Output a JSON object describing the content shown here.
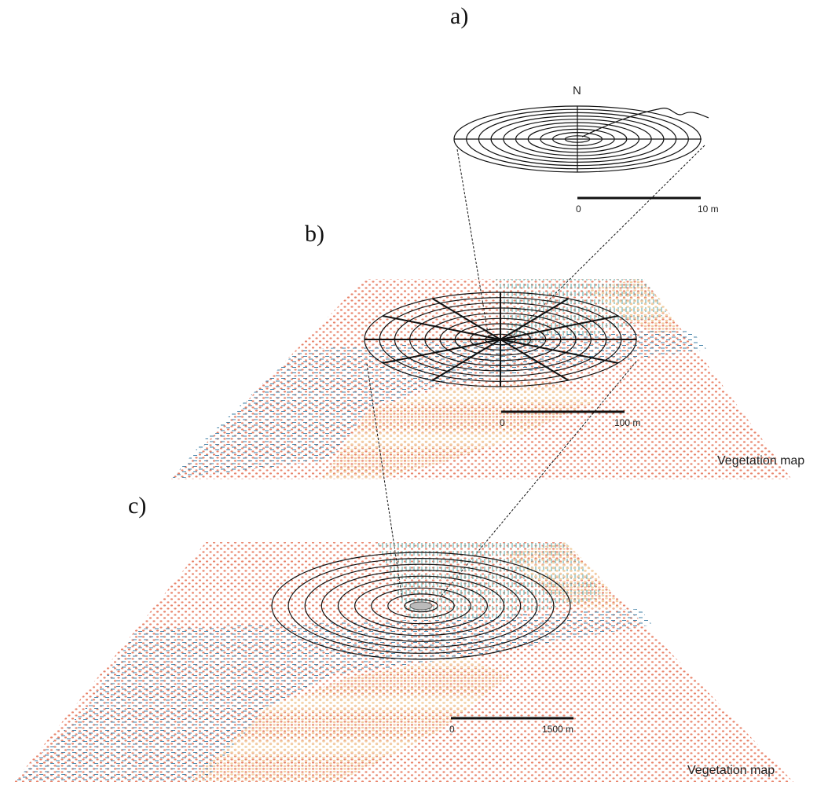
{
  "panels": {
    "a": {
      "label": "a)",
      "north_label": "N",
      "scale": {
        "start": "0",
        "end": "10 m"
      }
    },
    "b": {
      "label": "b)",
      "scale": {
        "start": "0",
        "end": "100 m"
      },
      "map_label": "Vegetation map"
    },
    "c": {
      "label": "c)",
      "scale": {
        "start": "0",
        "end": "1500 m"
      },
      "map_label": "Vegetation map"
    }
  },
  "colors": {
    "red_vegetation": "#e8836a",
    "tan_vegetation": "#f2cfa2",
    "blue_vegetation": "#3f7fa6",
    "teal_vegetation": "#5aa7a5",
    "lines": "#111111"
  }
}
